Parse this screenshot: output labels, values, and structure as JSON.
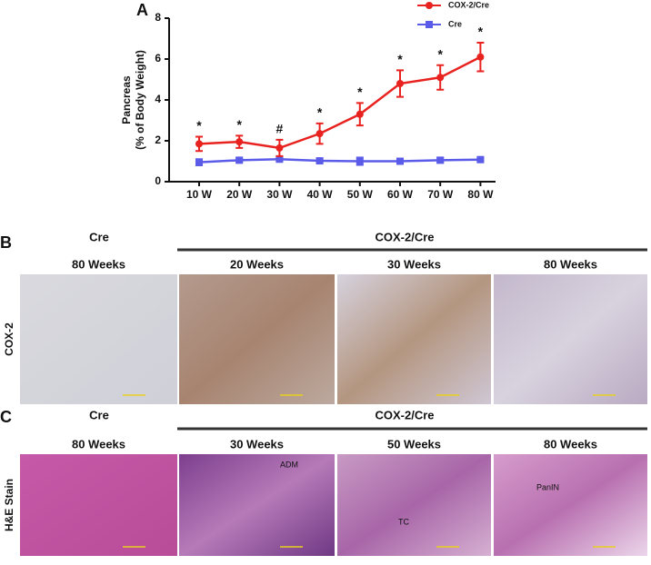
{
  "chart_data": {
    "type": "line",
    "panel_label": "A",
    "ylabel_lines": [
      "Pancreas",
      "(% of Body Weight)"
    ],
    "categories": [
      "10 W",
      "20 W",
      "30 W",
      "40 W",
      "50 W",
      "60 W",
      "70 W",
      "80 W"
    ],
    "annotations": [
      "*",
      "*",
      "#",
      "*",
      "*",
      "*",
      "*",
      "*"
    ],
    "series": [
      {
        "name": "COX-2/Cre",
        "color": "#e8221f",
        "marker": "circle",
        "values": [
          1.85,
          1.95,
          1.65,
          2.35,
          3.3,
          4.8,
          5.1,
          6.1
        ],
        "errors": [
          0.35,
          0.3,
          0.4,
          0.5,
          0.55,
          0.65,
          0.6,
          0.7
        ]
      },
      {
        "name": "Cre",
        "color": "#5b5bea",
        "marker": "square",
        "values": [
          0.95,
          1.05,
          1.1,
          1.02,
          1.0,
          1.0,
          1.05,
          1.08
        ],
        "errors": [
          0.15,
          0.1,
          0.08,
          0.1,
          0.18,
          0.08,
          0.12,
          0.07
        ]
      }
    ],
    "ylim": [
      0,
      8
    ],
    "yticks": [
      0,
      2,
      4,
      6,
      8
    ],
    "legend": "upper right"
  },
  "panels": [
    {
      "label": "B",
      "row_label": "COX-2",
      "group_left": "Cre",
      "group_right": "COX-2/Cre",
      "images": [
        {
          "time": "80 Weeks"
        },
        {
          "time": "20 Weeks"
        },
        {
          "time": "30 Weeks"
        },
        {
          "time": "80 Weeks"
        }
      ]
    },
    {
      "label": "C",
      "row_label": "H&E Stain",
      "group_left": "Cre",
      "group_right": "COX-2/Cre",
      "images": [
        {
          "time": "80 Weeks"
        },
        {
          "time": "30 Weeks",
          "annotation": "ADM"
        },
        {
          "time": "50 Weeks",
          "annotation": "TC"
        },
        {
          "time": "80 Weeks",
          "annotation": "PanIN"
        }
      ]
    }
  ]
}
